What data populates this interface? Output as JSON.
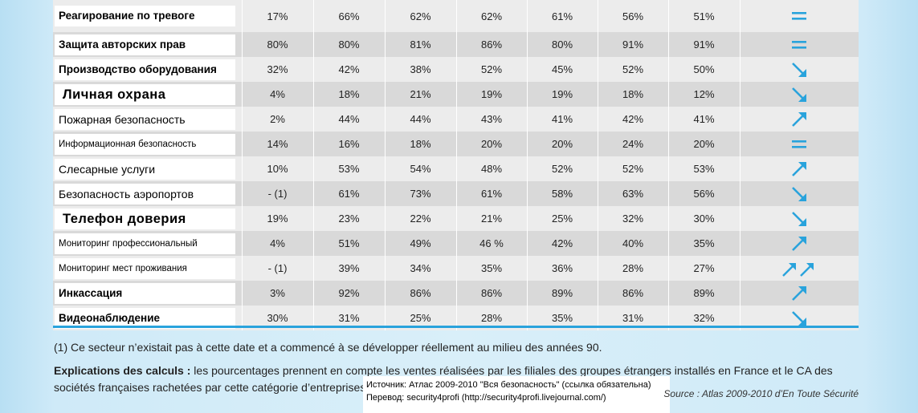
{
  "table": {
    "rows": [
      {
        "label": "Реагирование по тревоге",
        "style": "lb-bold",
        "values": [
          "17%",
          "66%",
          "62%",
          "62%",
          "61%",
          "56%",
          "51%"
        ],
        "trend": "equal-icon"
      },
      {
        "label": "Защита авторских прав",
        "style": "lb-bold",
        "values": [
          "80%",
          "80%",
          "81%",
          "86%",
          "80%",
          "91%",
          "91%"
        ],
        "trend": "equal-icon"
      },
      {
        "label": "Производство оборудования",
        "style": "lb-bold",
        "values": [
          "32%",
          "42%",
          "38%",
          "52%",
          "45%",
          "52%",
          "50%"
        ],
        "trend": "arrow-down-right-icon"
      },
      {
        "label": "Личная охрана",
        "style": "lb-big",
        "values": [
          "4%",
          "18%",
          "21%",
          "19%",
          "19%",
          "18%",
          "12%"
        ],
        "trend": "arrow-down-right-icon"
      },
      {
        "label": "Пожарная безопасность",
        "style": "lb-plain",
        "values": [
          "2%",
          "44%",
          "44%",
          "43%",
          "41%",
          "42%",
          "41%"
        ],
        "trend": "arrow-up-right-icon"
      },
      {
        "label": "Информационная безопасность",
        "style": "lb-small",
        "values": [
          "14%",
          "16%",
          "18%",
          "20%",
          "20%",
          "24%",
          "20%"
        ],
        "trend": "equal-icon"
      },
      {
        "label": "Слесарные услуги",
        "style": "lb-plain",
        "values": [
          "10%",
          "53%",
          "54%",
          "48%",
          "52%",
          "52%",
          "53%"
        ],
        "trend": "arrow-up-right-icon"
      },
      {
        "label": "Безопасность аэропортов",
        "style": "lb-plain",
        "values": [
          "- (1)",
          "61%",
          "73%",
          "61%",
          "58%",
          "63%",
          "56%"
        ],
        "trend": "arrow-down-right-icon"
      },
      {
        "label": "Телефон доверия",
        "style": "lb-big",
        "values": [
          "19%",
          "23%",
          "22%",
          "21%",
          "25%",
          "32%",
          "30%"
        ],
        "trend": "arrow-down-right-icon"
      },
      {
        "label": "Мониторинг профессиональный",
        "style": "lb-small",
        "values": [
          "4%",
          "51%",
          "49%",
          "46 %",
          "42%",
          "40%",
          "35%"
        ],
        "trend": "arrow-up-right-icon"
      },
      {
        "label": "Мониторинг мест проживания",
        "style": "lb-small",
        "values": [
          "- (1)",
          "39%",
          "34%",
          "35%",
          "36%",
          "28%",
          "27%"
        ],
        "trend": "double-arrow-up-right-icon"
      },
      {
        "label": "Инкассация",
        "style": "lb-bold",
        "values": [
          "3%",
          "92%",
          "86%",
          "86%",
          "89%",
          "86%",
          "89%"
        ],
        "trend": "arrow-up-right-icon"
      },
      {
        "label": "Видеонаблюдение",
        "style": "lb-bold",
        "values": [
          "30%",
          "31%",
          "25%",
          "28%",
          "35%",
          "31%",
          "32%"
        ],
        "trend": "arrow-down-right-icon"
      }
    ]
  },
  "footnote": "(1) Ce secteur n’existait pas à cette date et a commencé à se développer réellement au milieu des années 90.",
  "explanation": {
    "title": "Explications des calculs :",
    "text": " les pourcentages prennent en compte les ventes réalisées par les filiales des groupes étrangers installés en France et le CA des sociétés françaises rachetées par cette catégorie d’entreprises."
  },
  "translation": {
    "line1": "Источник: Атлас 2009-2010 \"Вся безопасность\" (ссылка обязательна)",
    "line2": "Перевод: security4profi (http://security4profi.livejournal.com/)"
  },
  "source": "Source : Atlas 2009-2010 d’En Toute Sécurité",
  "colors": {
    "accent": "#29a3dc",
    "row_light": "#ececec",
    "row_dark": "#d9d9d9"
  }
}
